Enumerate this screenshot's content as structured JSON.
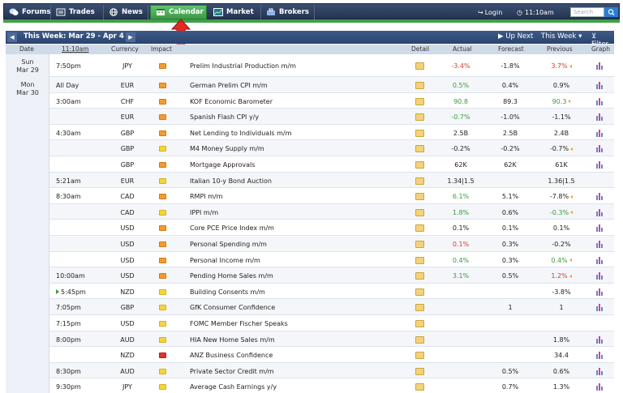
{
  "nav": {
    "tabs": [
      {
        "label": "Forums",
        "icon": "chat-bubbles-icon"
      },
      {
        "label": "Trades",
        "icon": "list-icon"
      },
      {
        "label": "News",
        "icon": "globe-icon"
      },
      {
        "label": "Calendar",
        "icon": "calendar-icon",
        "active": true
      },
      {
        "label": "Market",
        "icon": "chart-icon"
      },
      {
        "label": "Brokers",
        "icon": "brokers-icon"
      }
    ],
    "login": "Login",
    "clock": "11:10am",
    "search_placeholder": "Search"
  },
  "week": {
    "title": "This Week: Mar 29 - Apr 4",
    "up_next": "Up Next",
    "this_week": "This Week",
    "filter": "Filter"
  },
  "columns": {
    "date": "Date",
    "time": "11:10am",
    "currency": "Currency",
    "impact": "Impact",
    "detail": "Detail",
    "actual": "Actual",
    "forecast": "Forecast",
    "previous": "Previous",
    "graph": "Graph"
  },
  "days": [
    {
      "day": "Sun",
      "date": "Mar 29"
    },
    {
      "day": "Mon",
      "date": "Mar 30"
    }
  ],
  "rows": [
    {
      "time": "7:50pm",
      "cur": "JPY",
      "impact": "med",
      "name": "Prelim Industrial Production m/m",
      "actual": "-3.4%",
      "actual_color": "red",
      "forecast": "-1.8%",
      "previous": "3.7%",
      "previous_color": "red",
      "revised": true,
      "graph": true
    },
    {
      "time": "All Day",
      "cur": "EUR",
      "impact": "med",
      "name": "German Prelim CPI m/m",
      "actual": "0.5%",
      "actual_color": "green",
      "forecast": "0.4%",
      "previous": "0.9%",
      "graph": true
    },
    {
      "time": "3:00am",
      "cur": "CHF",
      "impact": "med",
      "name": "KOF Economic Barometer",
      "actual": "90.8",
      "actual_color": "green",
      "forecast": "89.3",
      "previous": "90.3",
      "previous_color": "green",
      "revised": true,
      "graph": true
    },
    {
      "time": "",
      "cur": "EUR",
      "impact": "med",
      "name": "Spanish Flash CPI y/y",
      "actual": "-0.7%",
      "actual_color": "green",
      "forecast": "-1.0%",
      "previous": "-1.1%",
      "graph": true
    },
    {
      "time": "4:30am",
      "cur": "GBP",
      "impact": "med",
      "name": "Net Lending to Individuals m/m",
      "actual": "2.5B",
      "forecast": "2.5B",
      "previous": "2.4B",
      "graph": true
    },
    {
      "time": "",
      "cur": "GBP",
      "impact": "low",
      "name": "M4 Money Supply m/m",
      "actual": "-0.2%",
      "forecast": "-0.2%",
      "previous": "-0.7%",
      "revised": true,
      "graph": true
    },
    {
      "time": "",
      "cur": "GBP",
      "impact": "med",
      "name": "Mortgage Approvals",
      "actual": "62K",
      "forecast": "62K",
      "previous": "61K",
      "graph": true
    },
    {
      "time": "5:21am",
      "cur": "EUR",
      "impact": "low",
      "name": "Italian 10-y Bond Auction",
      "actual": "1.34|1.5",
      "forecast": "",
      "previous": "1.36|1.5",
      "graph": false
    },
    {
      "time": "8:30am",
      "cur": "CAD",
      "impact": "med",
      "name": "RMPI m/m",
      "actual": "6.1%",
      "actual_color": "green",
      "forecast": "5.1%",
      "previous": "-7.8%",
      "revised": true,
      "graph": true
    },
    {
      "time": "",
      "cur": "CAD",
      "impact": "low",
      "name": "IPPI m/m",
      "actual": "1.8%",
      "actual_color": "green",
      "forecast": "0.6%",
      "previous": "-0.3%",
      "previous_color": "green",
      "revised": true,
      "graph": true
    },
    {
      "time": "",
      "cur": "USD",
      "impact": "med",
      "name": "Core PCE Price Index m/m",
      "actual": "0.1%",
      "forecast": "0.1%",
      "previous": "0.1%",
      "graph": true
    },
    {
      "time": "",
      "cur": "USD",
      "impact": "med",
      "name": "Personal Spending m/m",
      "actual": "0.1%",
      "actual_color": "red",
      "forecast": "0.3%",
      "previous": "-0.2%",
      "graph": true
    },
    {
      "time": "",
      "cur": "USD",
      "impact": "med",
      "name": "Personal Income m/m",
      "actual": "0.4%",
      "actual_color": "green",
      "forecast": "0.3%",
      "previous": "0.4%",
      "previous_color": "green",
      "revised": true,
      "graph": true
    },
    {
      "time": "10:00am",
      "cur": "USD",
      "impact": "med",
      "name": "Pending Home Sales m/m",
      "actual": "3.1%",
      "actual_color": "green",
      "forecast": "0.5%",
      "previous": "1.2%",
      "previous_color": "red",
      "revised": true,
      "graph": true
    },
    {
      "time": "5:45pm",
      "cur": "NZD",
      "impact": "low",
      "name": "Building Consents m/m",
      "actual": "",
      "forecast": "",
      "previous": "-3.8%",
      "upnext": true,
      "graph": true
    },
    {
      "time": "7:05pm",
      "cur": "GBP",
      "impact": "low",
      "name": "GfK Consumer Confidence",
      "actual": "",
      "forecast": "1",
      "previous": "1",
      "graph": true
    },
    {
      "time": "7:15pm",
      "cur": "USD",
      "impact": "low",
      "name": "FOMC Member Fischer Speaks",
      "actual": "",
      "forecast": "",
      "previous": "",
      "graph": false
    },
    {
      "time": "8:00pm",
      "cur": "AUD",
      "impact": "low",
      "name": "HIA New Home Sales m/m",
      "actual": "",
      "forecast": "",
      "previous": "1.8%",
      "graph": true
    },
    {
      "time": "",
      "cur": "NZD",
      "impact": "high",
      "name": "ANZ Business Confidence",
      "actual": "",
      "forecast": "",
      "previous": "34.4",
      "graph": true
    },
    {
      "time": "8:30pm",
      "cur": "AUD",
      "impact": "low",
      "name": "Private Sector Credit m/m",
      "actual": "",
      "forecast": "0.5%",
      "previous": "0.6%",
      "graph": true
    },
    {
      "time": "9:30pm",
      "cur": "JPY",
      "impact": "low",
      "name": "Average Cash Earnings y/y",
      "actual": "",
      "forecast": "0.7%",
      "previous": "1.3%",
      "graph": true
    }
  ]
}
